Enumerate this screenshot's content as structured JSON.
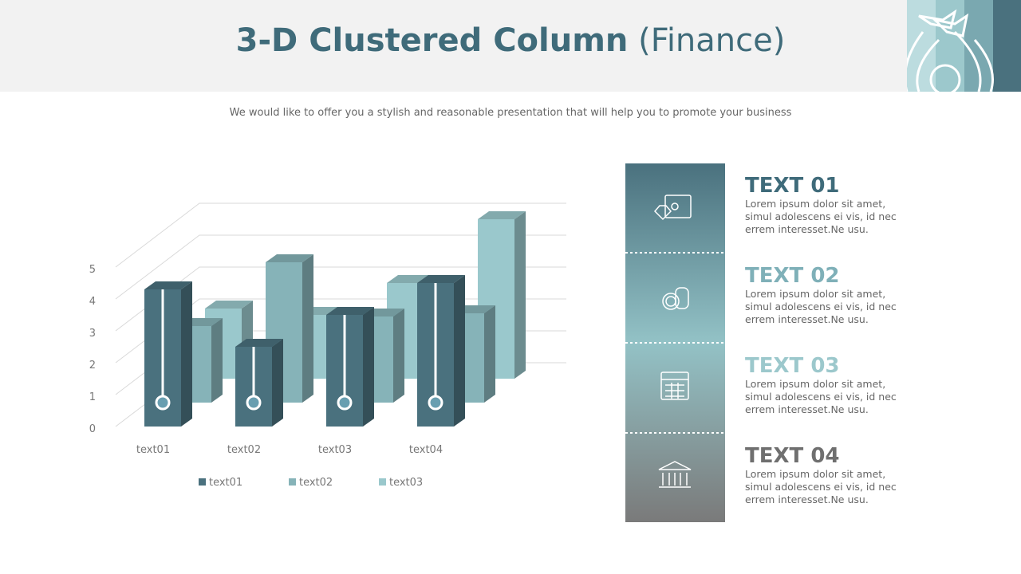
{
  "header": {
    "title_bold": "3-D Clustered Column",
    "title_rest": "(Finance)",
    "subtitle": "We would like to offer you a stylish and reasonable presentation that will help you to promote your business"
  },
  "chart_data": {
    "type": "bar3d",
    "categories": [
      "text01",
      "text02",
      "text03",
      "text04"
    ],
    "series": [
      {
        "name": "text01",
        "color": "#4a717e",
        "values": [
          4.3,
          2.5,
          3.5,
          4.5
        ]
      },
      {
        "name": "text02",
        "color": "#86b3b8",
        "values": [
          2.4,
          4.4,
          2.7,
          2.8
        ]
      },
      {
        "name": "text03",
        "color": "#9ac8cc",
        "values": [
          2.2,
          2.0,
          3.0,
          5.0
        ]
      }
    ],
    "ylim": [
      0,
      5
    ],
    "yticks": [
      0,
      1,
      2,
      3,
      4,
      5
    ],
    "grid": true
  },
  "panel": [
    {
      "title": "TEXT 01",
      "body": "Lorem ipsum dolor sit amet, simul adolescens ei vis, id nec errem interesset.Ne usu."
    },
    {
      "title": "TEXT 02",
      "body": "Lorem ipsum dolor sit amet, simul adolescens ei vis, id nec errem interesset.Ne usu."
    },
    {
      "title": "TEXT 03",
      "body": "Lorem ipsum dolor sit amet, simul adolescens ei vis, id nec errem interesset.Ne usu."
    },
    {
      "title": "TEXT 04",
      "body": "Lorem ipsum dolor sit amet, simul adolescens ei vis, id nec errem interesset.Ne usu."
    }
  ]
}
